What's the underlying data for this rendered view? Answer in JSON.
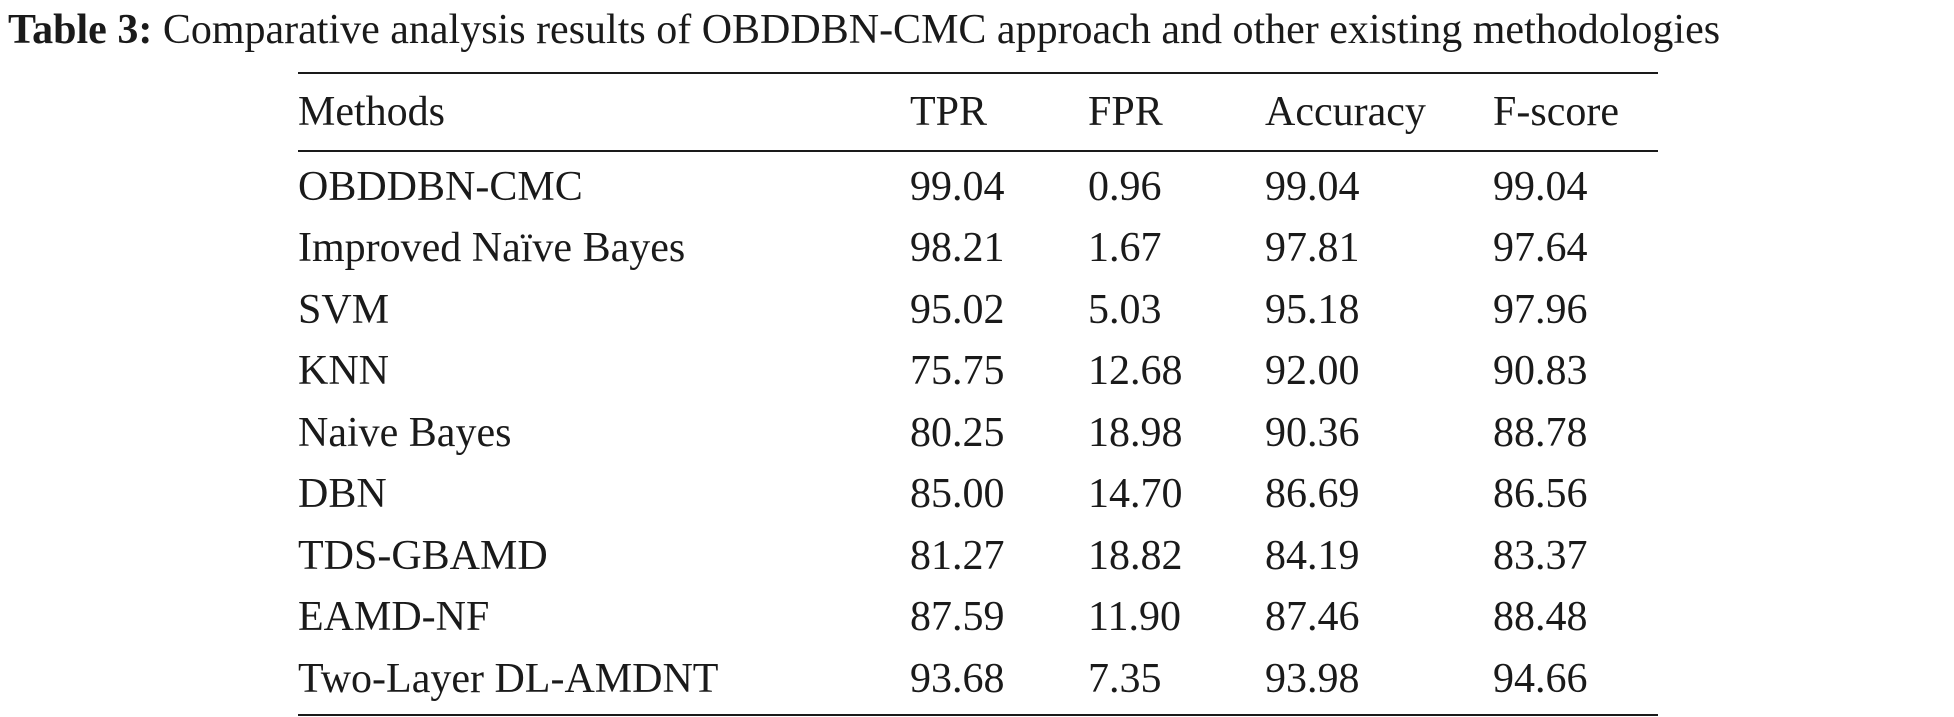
{
  "caption": {
    "label": "Table 3:",
    "text": "Comparative analysis results of OBDDBN-CMC approach and other existing methodologies"
  },
  "table": {
    "columns": [
      "Methods",
      "TPR",
      "FPR",
      "Accuracy",
      "F-score"
    ],
    "rows": [
      [
        "OBDDBN-CMC",
        "99.04",
        "0.96",
        "99.04",
        "99.04"
      ],
      [
        "Improved Naïve Bayes",
        "98.21",
        "1.67",
        "97.81",
        "97.64"
      ],
      [
        "SVM",
        "95.02",
        "5.03",
        "95.18",
        "97.96"
      ],
      [
        "KNN",
        "75.75",
        "12.68",
        "92.00",
        "90.83"
      ],
      [
        "Naive Bayes",
        "80.25",
        "18.98",
        "90.36",
        "88.78"
      ],
      [
        "DBN",
        "85.00",
        "14.70",
        "86.69",
        "86.56"
      ],
      [
        "TDS-GBAMD",
        "81.27",
        "18.82",
        "84.19",
        "83.37"
      ],
      [
        "EAMD-NF",
        "87.59",
        "11.90",
        "87.46",
        "88.48"
      ],
      [
        "Two-Layer DL-AMDNT",
        "93.68",
        "7.35",
        "93.98",
        "94.66"
      ]
    ]
  }
}
